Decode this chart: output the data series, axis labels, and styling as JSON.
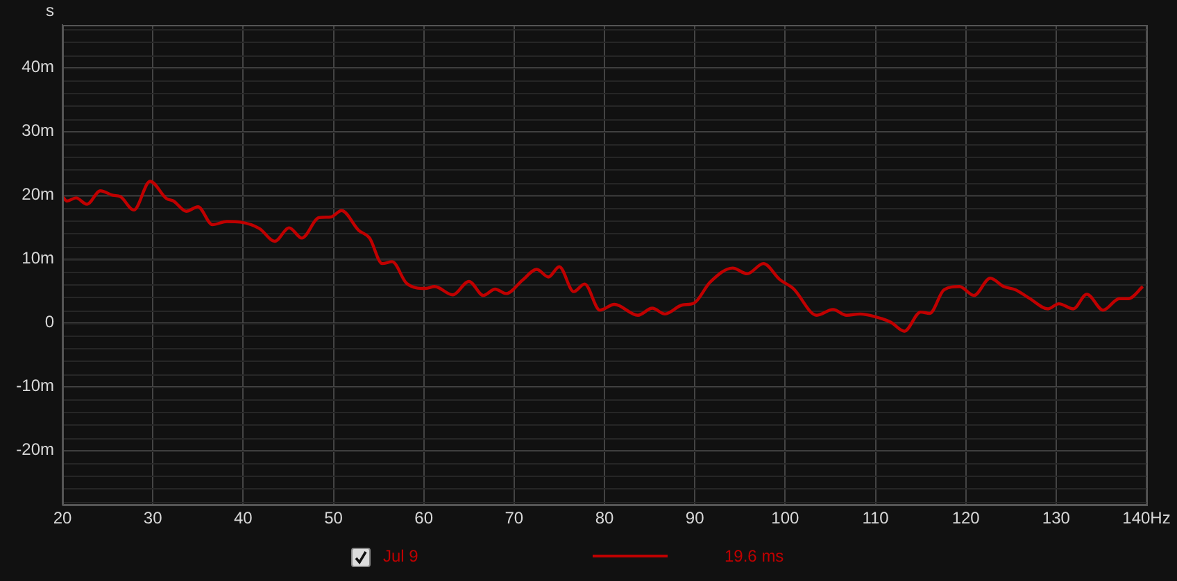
{
  "chart_data": {
    "type": "line",
    "ylabel": "s",
    "xlim": [
      20,
      140
    ],
    "xticks": [
      20,
      30,
      40,
      50,
      60,
      70,
      80,
      90,
      100,
      110,
      120,
      130,
      {
        "value": 140,
        "label": "140Hz"
      }
    ],
    "ylim": [
      -28.5,
      46.7
    ],
    "yticks": [
      {
        "value": -20,
        "label": "-20m"
      },
      {
        "value": -10,
        "label": "-10m"
      },
      0,
      {
        "value": 10,
        "label": "10m"
      },
      {
        "value": 20,
        "label": "20m"
      },
      {
        "value": 30,
        "label": "30m"
      },
      {
        "value": 40,
        "label": "40m"
      }
    ],
    "grid": true,
    "legend": "bottom",
    "marker": "none",
    "line_style": "solid",
    "annotations": [
      "19.6 ms"
    ],
    "series": [
      {
        "name": "Jul 9",
        "color": "#c00000",
        "x": [
          20,
          20.5,
          21.5,
          22.7,
          24.2,
          25.6,
          26.4,
          27.9,
          29.7,
          31.5,
          32.3,
          33.7,
          35,
          36.6,
          38.2,
          39.7,
          41.8,
          43.5,
          45.1,
          46.5,
          48.4,
          49.7,
          50.9,
          52.8,
          54,
          55.4,
          56.5,
          58.1,
          60.2,
          61.2,
          63.2,
          65,
          66.6,
          67.9,
          69.1,
          71,
          72.5,
          73.8,
          75,
          76.6,
          77.8,
          79.5,
          81.1,
          83.7,
          85.3,
          86.7,
          88.6,
          89.9,
          91.7,
          94.2,
          95.8,
          97.6,
          99.4,
          100.9,
          103.5,
          105.3,
          106.8,
          108.3,
          109.9,
          111.7,
          113.2,
          115,
          116,
          117.6,
          119.3,
          120.9,
          122.7,
          124.2,
          125.5,
          127,
          129.1,
          130.3,
          131.9,
          133.4,
          135.2,
          137,
          138,
          139.6
        ],
        "values": [
          19.8,
          19.1,
          19.6,
          18.6,
          20.7,
          20,
          19.8,
          17.7,
          22.2,
          19.5,
          19.1,
          17.5,
          18.2,
          15.4,
          15.9,
          15.8,
          14.8,
          12.8,
          14.9,
          13.3,
          16.5,
          16.6,
          17.6,
          14.5,
          13.3,
          9.3,
          9.6,
          6.2,
          5.4,
          5.7,
          4.4,
          6.5,
          4.3,
          5.3,
          4.6,
          6.8,
          8.4,
          7.2,
          8.8,
          4.9,
          6.1,
          2,
          2.9,
          1.2,
          2.3,
          1.4,
          2.8,
          3.1,
          6.4,
          8.6,
          7.7,
          9.3,
          6.8,
          5.4,
          1.2,
          2.1,
          1.2,
          1.4,
          1,
          0.1,
          -1.3,
          1.7,
          1.5,
          5.2,
          5.7,
          4.3,
          7,
          5.7,
          5.2,
          3.9,
          2.2,
          3,
          2.2,
          4.5,
          2,
          3.8,
          3.8,
          5.7
        ]
      }
    ]
  }
}
